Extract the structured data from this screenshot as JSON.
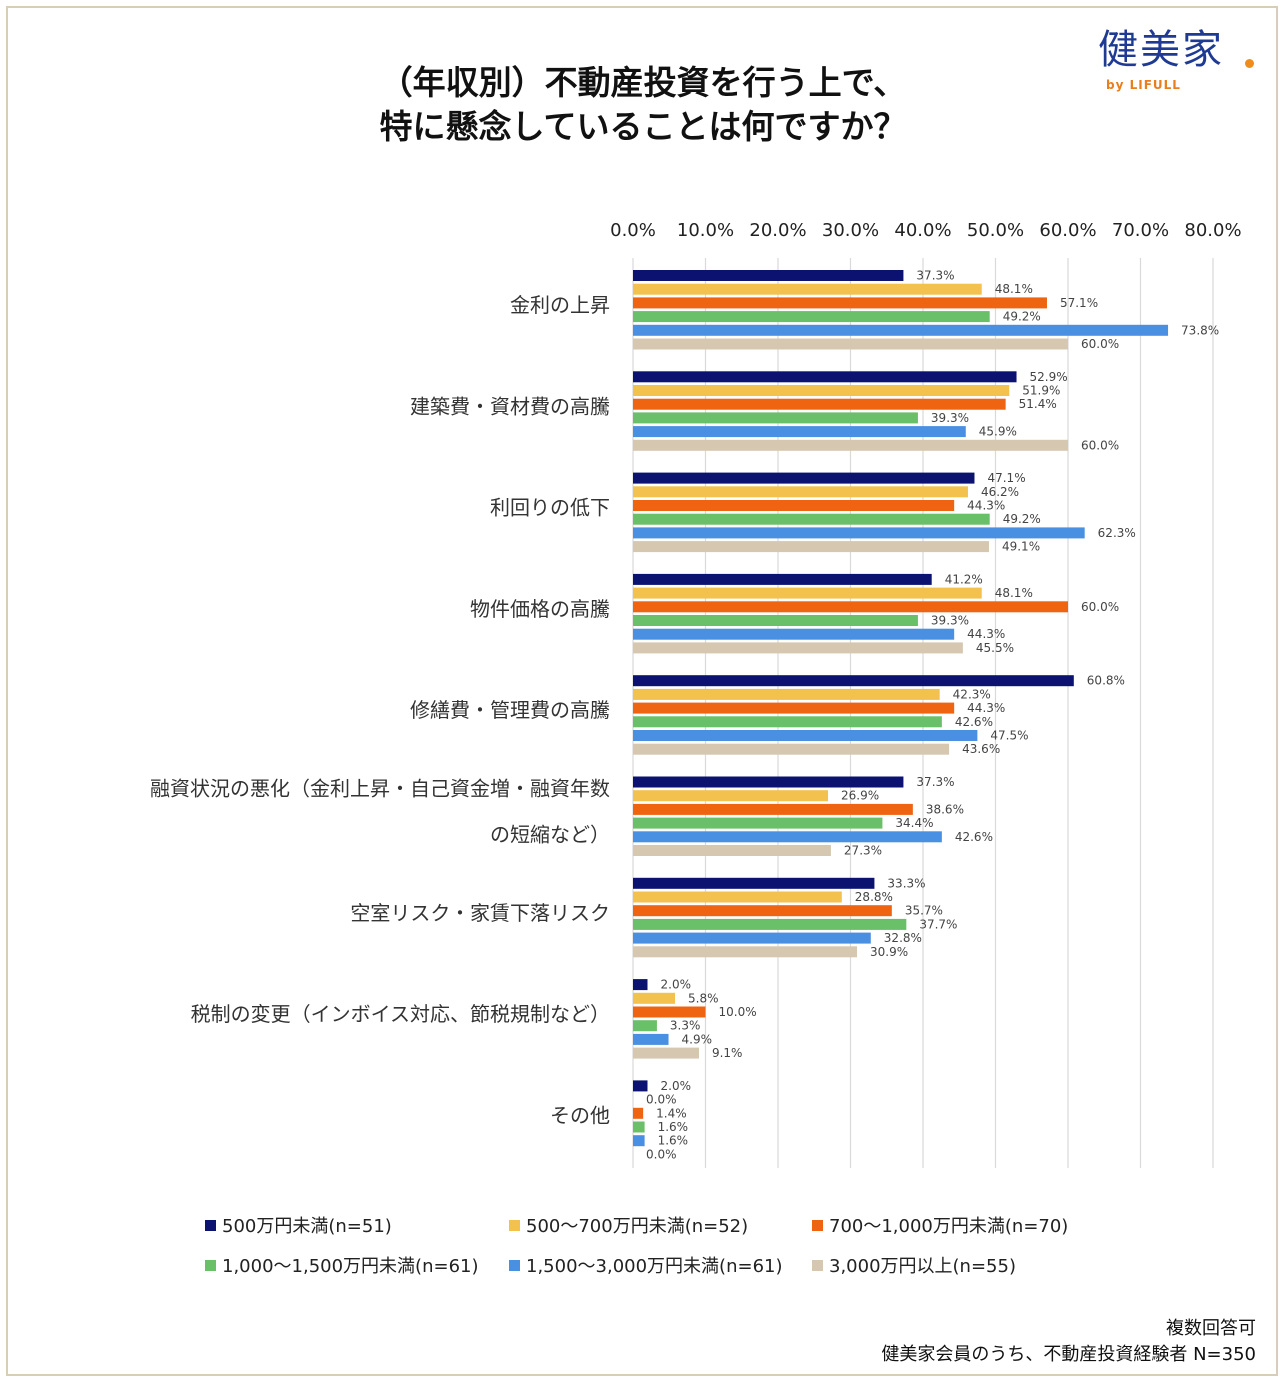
{
  "title": {
    "line1": "（年収別）不動産投資を行う上で、",
    "line2": "特に懸念していることは何ですか？"
  },
  "logo": {
    "name": "健美家",
    "sub": "by LIFULL",
    "text_color": "#1f3a93",
    "accent_color": "#f08c1a"
  },
  "notes": {
    "line1": "複数回答可",
    "line2": "健美家会員のうち、不動産投資経験者 N=350"
  },
  "chart_data": {
    "type": "bar",
    "orientation": "horizontal",
    "xlim": [
      0,
      80
    ],
    "xticks": [
      "0.0%",
      "10.0%",
      "20.0%",
      "30.0%",
      "40.0%",
      "50.0%",
      "60.0%",
      "70.0%",
      "80.0%"
    ],
    "grid": true,
    "legend_position": "bottom",
    "categories": [
      [
        "金利の上昇"
      ],
      [
        "建築費・資材費の高騰"
      ],
      [
        "利回りの低下"
      ],
      [
        "物件価格の高騰"
      ],
      [
        "修繕費・管理費の高騰"
      ],
      [
        "融資状況の悪化（金利上昇・自己資金増・融資年数",
        "の短縮など）"
      ],
      [
        "空室リスク・家賃下落リスク"
      ],
      [
        "税制の変更（インボイス対応、節税規制など）"
      ],
      [
        "その他"
      ]
    ],
    "series": [
      {
        "name": "500万円未満(n=51)",
        "color": "#0b1270",
        "values": [
          37.3,
          52.9,
          47.1,
          41.2,
          60.8,
          37.3,
          33.3,
          2.0,
          2.0
        ],
        "labels": [
          "37.3%",
          "52.9%",
          "47.1%",
          "41.2%",
          "60.8%",
          "37.3%",
          "33.3%",
          "2.0%",
          "2.0%"
        ]
      },
      {
        "name": "500～700万円未満(n=52)",
        "color": "#f2c14e",
        "values": [
          48.1,
          51.9,
          46.2,
          48.1,
          42.3,
          26.9,
          28.8,
          5.8,
          0.0
        ],
        "labels": [
          "48.1%",
          "51.9%",
          "46.2%",
          "48.1%",
          "42.3%",
          "26.9%",
          "28.8%",
          "5.8%",
          "0.0%"
        ]
      },
      {
        "name": "700～1,000万円未満(n=70)",
        "color": "#ee6411",
        "values": [
          57.1,
          51.4,
          44.3,
          60.0,
          44.3,
          38.6,
          35.7,
          10.0,
          1.4
        ],
        "labels": [
          "57.1%",
          "51.4%",
          "44.3%",
          "60.0%",
          "44.3%",
          "38.6%",
          "35.7%",
          "10.0%",
          "1.4%"
        ]
      },
      {
        "name": "1,000～1,500万円未満(n=61)",
        "color": "#6abf69",
        "values": [
          49.2,
          39.3,
          49.2,
          39.3,
          42.6,
          34.4,
          37.7,
          3.3,
          1.6
        ],
        "labels": [
          "49.2%",
          "39.3%",
          "49.2%",
          "39.3%",
          "42.6%",
          "34.4%",
          "37.7%",
          "3.3%",
          "1.6%"
        ]
      },
      {
        "name": "1,500～3,000万円未満(n=61)",
        "color": "#4a90e2",
        "values": [
          73.8,
          45.9,
          62.3,
          44.3,
          47.5,
          42.6,
          32.8,
          4.9,
          1.6
        ],
        "labels": [
          "73.8%",
          "45.9%",
          "62.3%",
          "44.3%",
          "47.5%",
          "42.6%",
          "32.8%",
          "4.9%",
          "1.6%"
        ]
      },
      {
        "name": "3,000万円以上(n=55)",
        "color": "#d6c8b0",
        "values": [
          60.0,
          60.0,
          49.1,
          45.5,
          43.6,
          27.3,
          30.9,
          9.1,
          0.0
        ],
        "labels": [
          "60.0%",
          "60.0%",
          "49.1%",
          "45.5%",
          "43.6%",
          "27.3%",
          "30.9%",
          "9.1%",
          "0.0%"
        ]
      }
    ]
  }
}
